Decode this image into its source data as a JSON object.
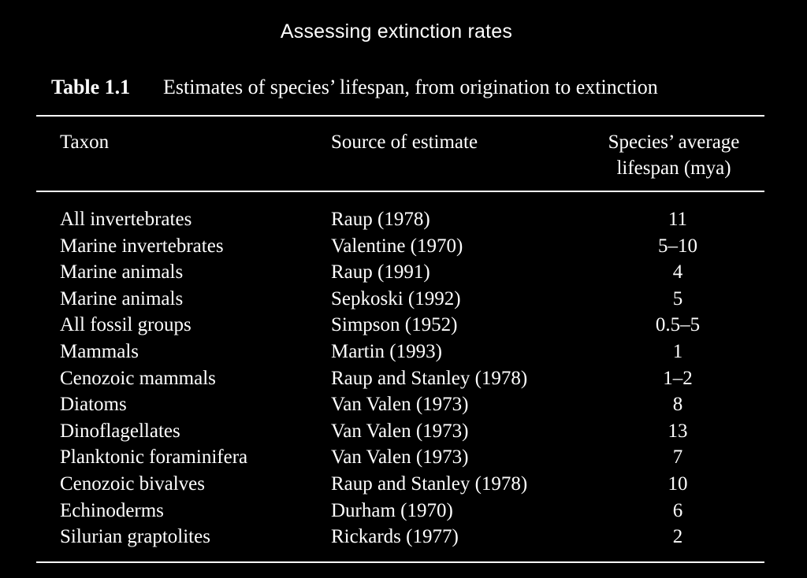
{
  "running_head": "Assessing extinction rates",
  "caption": {
    "label": "Table 1.1",
    "text": "Estimates of species’ lifespan, from origination to extinction"
  },
  "headers": {
    "taxon": "Taxon",
    "source": "Source of estimate",
    "lifespan_line1": "Species’ average",
    "lifespan_line2": "lifespan (mya)"
  },
  "rows": [
    {
      "taxon": "All invertebrates",
      "source": "Raup (1978)",
      "lifespan": "11"
    },
    {
      "taxon": "Marine invertebrates",
      "source": "Valentine (1970)",
      "lifespan": "5–10"
    },
    {
      "taxon": "Marine animals",
      "source": "Raup (1991)",
      "lifespan": "4"
    },
    {
      "taxon": "Marine animals",
      "source": "Sepkoski (1992)",
      "lifespan": "5"
    },
    {
      "taxon": "All fossil groups",
      "source": "Simpson (1952)",
      "lifespan": "0.5–5"
    },
    {
      "taxon": "Mammals",
      "source": "Martin (1993)",
      "lifespan": "1"
    },
    {
      "taxon": "Cenozoic mammals",
      "source": "Raup and Stanley (1978)",
      "lifespan": "1–2"
    },
    {
      "taxon": "Diatoms",
      "source": "Van Valen (1973)",
      "lifespan": "8"
    },
    {
      "taxon": "Dinoflagellates",
      "source": "Van Valen (1973)",
      "lifespan": "13"
    },
    {
      "taxon": "Planktonic foraminifera",
      "source": "Van Valen (1973)",
      "lifespan": "7"
    },
    {
      "taxon": "Cenozoic bivalves",
      "source": "Raup and Stanley (1978)",
      "lifespan": "10"
    },
    {
      "taxon": "Echinoderms",
      "source": "Durham (1970)",
      "lifespan": "6"
    },
    {
      "taxon": "Silurian graptolites",
      "source": "Rickards (1977)",
      "lifespan": "2"
    }
  ]
}
